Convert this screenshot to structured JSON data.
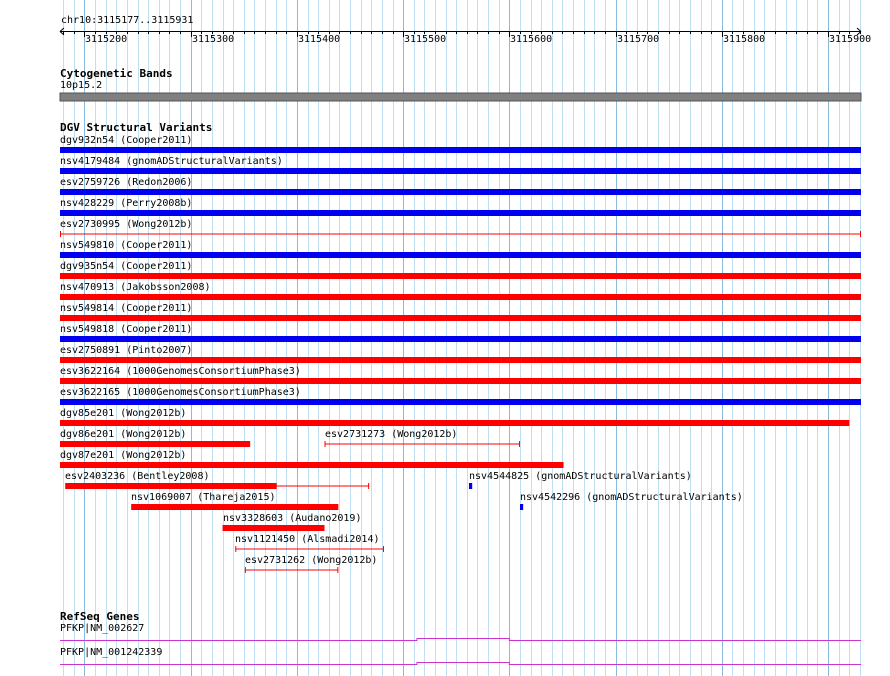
{
  "ruler": {
    "location": "chr10:3115177..3115931",
    "start": 3115177,
    "end": 3115931,
    "ticks": [
      "3115200",
      "3115300",
      "3115400",
      "3115500",
      "3115600",
      "3115700",
      "3115800",
      "3115900"
    ]
  },
  "tracks": {
    "cytoband": {
      "title": "Cytogenetic Bands",
      "band": "10p15.2",
      "color": "#808080"
    },
    "dgv": {
      "title": "DGV Structural Variants",
      "colors": {
        "blue": "#0000ee",
        "red": "#ff0000"
      },
      "features": [
        {
          "label": "dgv932n54 (Cooper2011)",
          "start": 3115177,
          "end": 3115931,
          "color": "blue",
          "style": "thick"
        },
        {
          "label": "nsv4179484 (gnomADStructuralVariants)",
          "start": 3115177,
          "end": 3115931,
          "color": "blue",
          "style": "thick"
        },
        {
          "label": "esv2759726 (Redon2006)",
          "start": 3115177,
          "end": 3115931,
          "color": "blue",
          "style": "thick"
        },
        {
          "label": "nsv428229 (Perry2008b)",
          "start": 3115177,
          "end": 3115931,
          "color": "blue",
          "style": "thick"
        },
        {
          "label": "esv2730995 (Wong2012b)",
          "start": 3115177,
          "end": 3115931,
          "color": "red",
          "style": "thin"
        },
        {
          "label": "nsv549810 (Cooper2011)",
          "start": 3115177,
          "end": 3115931,
          "color": "blue",
          "style": "thick"
        },
        {
          "label": "dgv935n54 (Cooper2011)",
          "start": 3115177,
          "end": 3115931,
          "color": "red",
          "style": "thick"
        },
        {
          "label": "nsv470913 (Jakobsson2008)",
          "start": 3115177,
          "end": 3115931,
          "color": "red",
          "style": "thick"
        },
        {
          "label": "nsv549814 (Cooper2011)",
          "start": 3115177,
          "end": 3115931,
          "color": "red",
          "style": "thick"
        },
        {
          "label": "nsv549818 (Cooper2011)",
          "start": 3115177,
          "end": 3115931,
          "color": "blue",
          "style": "thick"
        },
        {
          "label": "esv2750891 (Pinto2007)",
          "start": 3115177,
          "end": 3115931,
          "color": "red",
          "style": "thick"
        },
        {
          "label": "esv3622164 (1000GenomesConsortiumPhase3)",
          "start": 3115177,
          "end": 3115931,
          "color": "red",
          "style": "thick"
        },
        {
          "label": "esv3622165 (1000GenomesConsortiumPhase3)",
          "start": 3115177,
          "end": 3115931,
          "color": "blue",
          "style": "thick"
        },
        {
          "label": "dgv85e201 (Wong2012b)",
          "start": 3115177,
          "end": 3115920,
          "color": "red",
          "style": "thick"
        },
        {
          "label": "dgv86e201 (Wong2012b)",
          "start": 3115177,
          "end": 3115356,
          "color": "red",
          "style": "thick"
        },
        {
          "label": "esv2731273 (Wong2012b)",
          "start": 3115426,
          "end": 3115610,
          "color": "red",
          "style": "thin"
        },
        {
          "label": "dgv87e201 (Wong2012b)",
          "start": 3115177,
          "end": 3115651,
          "color": "red",
          "style": "thick"
        },
        {
          "label": "esv2403236 (Bentley2008)",
          "start": 3115182,
          "end": 3115468,
          "color": "red",
          "style": "mixed",
          "thick_end": 3115381
        },
        {
          "label": "nsv4544825 (gnomADStructuralVariants)",
          "start": 3115562,
          "end": 3115565,
          "color": "blue",
          "style": "thick"
        },
        {
          "label": "nsv1069007 (Thareja2015)",
          "start": 3115244,
          "end": 3115439,
          "color": "red",
          "style": "thick"
        },
        {
          "label": "nsv4542296 (gnomADStructuralVariants)",
          "start": 3115610,
          "end": 3115613,
          "color": "blue",
          "style": "thick"
        },
        {
          "label": "nsv3328603 (Audano2019)",
          "start": 3115330,
          "end": 3115426,
          "color": "red",
          "style": "thick"
        },
        {
          "label": "nsv1121450 (Alsmadi2014)",
          "start": 3115342,
          "end": 3115482,
          "color": "red",
          "style": "thin"
        },
        {
          "label": "esv2731262 (Wong2012b)",
          "start": 3115351,
          "end": 3115439,
          "color": "red",
          "style": "thin"
        }
      ]
    },
    "refseq": {
      "title": "RefSeq Genes",
      "color": "#cc33cc",
      "genes": [
        {
          "label": "PFKP|NM_002627",
          "exon_start": 3115513,
          "exon_end": 3115600
        },
        {
          "label": "PFKP|NM_001242339",
          "exon_start": 3115513,
          "exon_end": 3115600
        }
      ]
    }
  }
}
